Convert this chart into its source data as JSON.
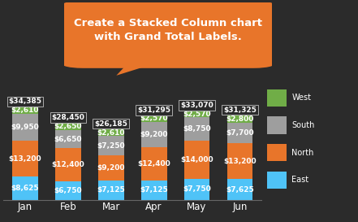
{
  "months": [
    "Jan",
    "Feb",
    "Mar",
    "Apr",
    "May",
    "Jun"
  ],
  "east": [
    8625,
    6750,
    7125,
    7125,
    7750,
    7625
  ],
  "north": [
    13200,
    12400,
    9200,
    12400,
    14000,
    13200
  ],
  "south": [
    9950,
    6650,
    7250,
    9200,
    8750,
    7700
  ],
  "west": [
    2610,
    2650,
    2610,
    2570,
    2570,
    2800
  ],
  "totals": [
    34385,
    28450,
    26185,
    31295,
    33070,
    31325
  ],
  "colors": {
    "east": "#4fc3f7",
    "north": "#e8752a",
    "south": "#9e9e9e",
    "west": "#70ad47"
  },
  "bg_color": "#2b2b2b",
  "total_box_bg": "#2b2b2b",
  "total_box_edge": "#aaaaaa",
  "text_color": "#ffffff",
  "callout_text": "Create a Stacked Column chart\nwith Grand Total Labels.",
  "callout_bg": "#e8752a",
  "callout_text_color": "#ffffff",
  "dot_color": "#4fc3f7",
  "legend_labels": [
    "West",
    "South",
    "North",
    "East"
  ],
  "bar_width": 0.6,
  "ylim": [
    0,
    46000
  ],
  "inner_fontsize": 6.5,
  "total_fontsize": 6.5,
  "month_fontsize": 8.5
}
